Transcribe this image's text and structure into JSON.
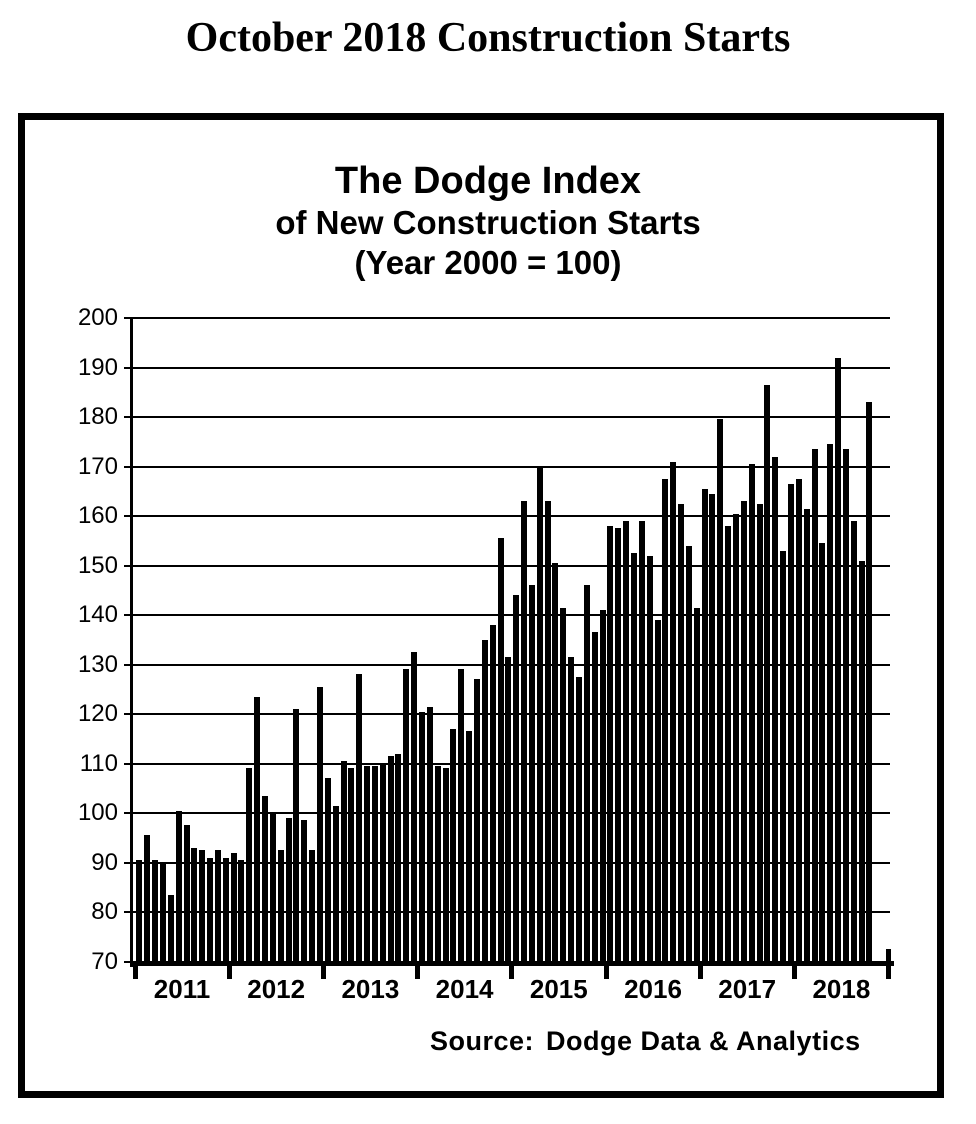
{
  "page": {
    "title": "October 2018 Construction Starts"
  },
  "chart": {
    "title_line1": "The Dodge Index",
    "title_line2": "of New Construction Starts",
    "title_line3": "(Year 2000 = 100)",
    "source_label": "Source:",
    "source_value": "Dodge Data & Analytics"
  },
  "chart_data": {
    "type": "bar",
    "title": "The Dodge Index of New Construction Starts (Year 2000 = 100)",
    "subtitle": "October 2018 Construction Starts",
    "source": "Source: Dodge Data & Analytics",
    "ylabel": "Index (Year 2000 = 100)",
    "ylim": [
      70,
      200
    ],
    "yticks": [
      200,
      190,
      180,
      170,
      160,
      150,
      140,
      130,
      120,
      110,
      100,
      90,
      80,
      70
    ],
    "grid": "horizontal",
    "legend": "none",
    "bar_color": "#000000",
    "x_unit": "month",
    "year_order": [
      "2011",
      "2012",
      "2013",
      "2014",
      "2015",
      "2016",
      "2017",
      "2018"
    ],
    "series": [
      {
        "name": "Dodge Index of New Construction Starts (monthly)",
        "values_by_year": {
          "2011": [
            90.5,
            95.5,
            90.5,
            90,
            83.5,
            100.5,
            97.5,
            93,
            92.5,
            91,
            92.5,
            91
          ],
          "2012": [
            92,
            90.5,
            109,
            123.5,
            103.5,
            100,
            92.5,
            99,
            121,
            98.5,
            92.5,
            125.5
          ],
          "2013": [
            107,
            101.5,
            110.5,
            109,
            128,
            109.5,
            109.5,
            110,
            111.5,
            112,
            129,
            132.5
          ],
          "2014": [
            120.5,
            121.5,
            109.5,
            109,
            117,
            129,
            116.5,
            127,
            135,
            138,
            155.5,
            131.5
          ],
          "2015": [
            144,
            163,
            146,
            170,
            163,
            150.5,
            141.5,
            131.5,
            127.5,
            146,
            136.5,
            141
          ],
          "2016": [
            158,
            157.5,
            159,
            152.5,
            159,
            152,
            139,
            167.5,
            171,
            162.5,
            154,
            141.5
          ],
          "2017": [
            165.5,
            164.5,
            179.5,
            158,
            160.5,
            163,
            170.5,
            162.5,
            186.5,
            172,
            153,
            166.5
          ],
          "2018": [
            167.5,
            161.5,
            173.5,
            154.5,
            174.5,
            192,
            173.5,
            159,
            151,
            183
          ]
        }
      }
    ]
  }
}
